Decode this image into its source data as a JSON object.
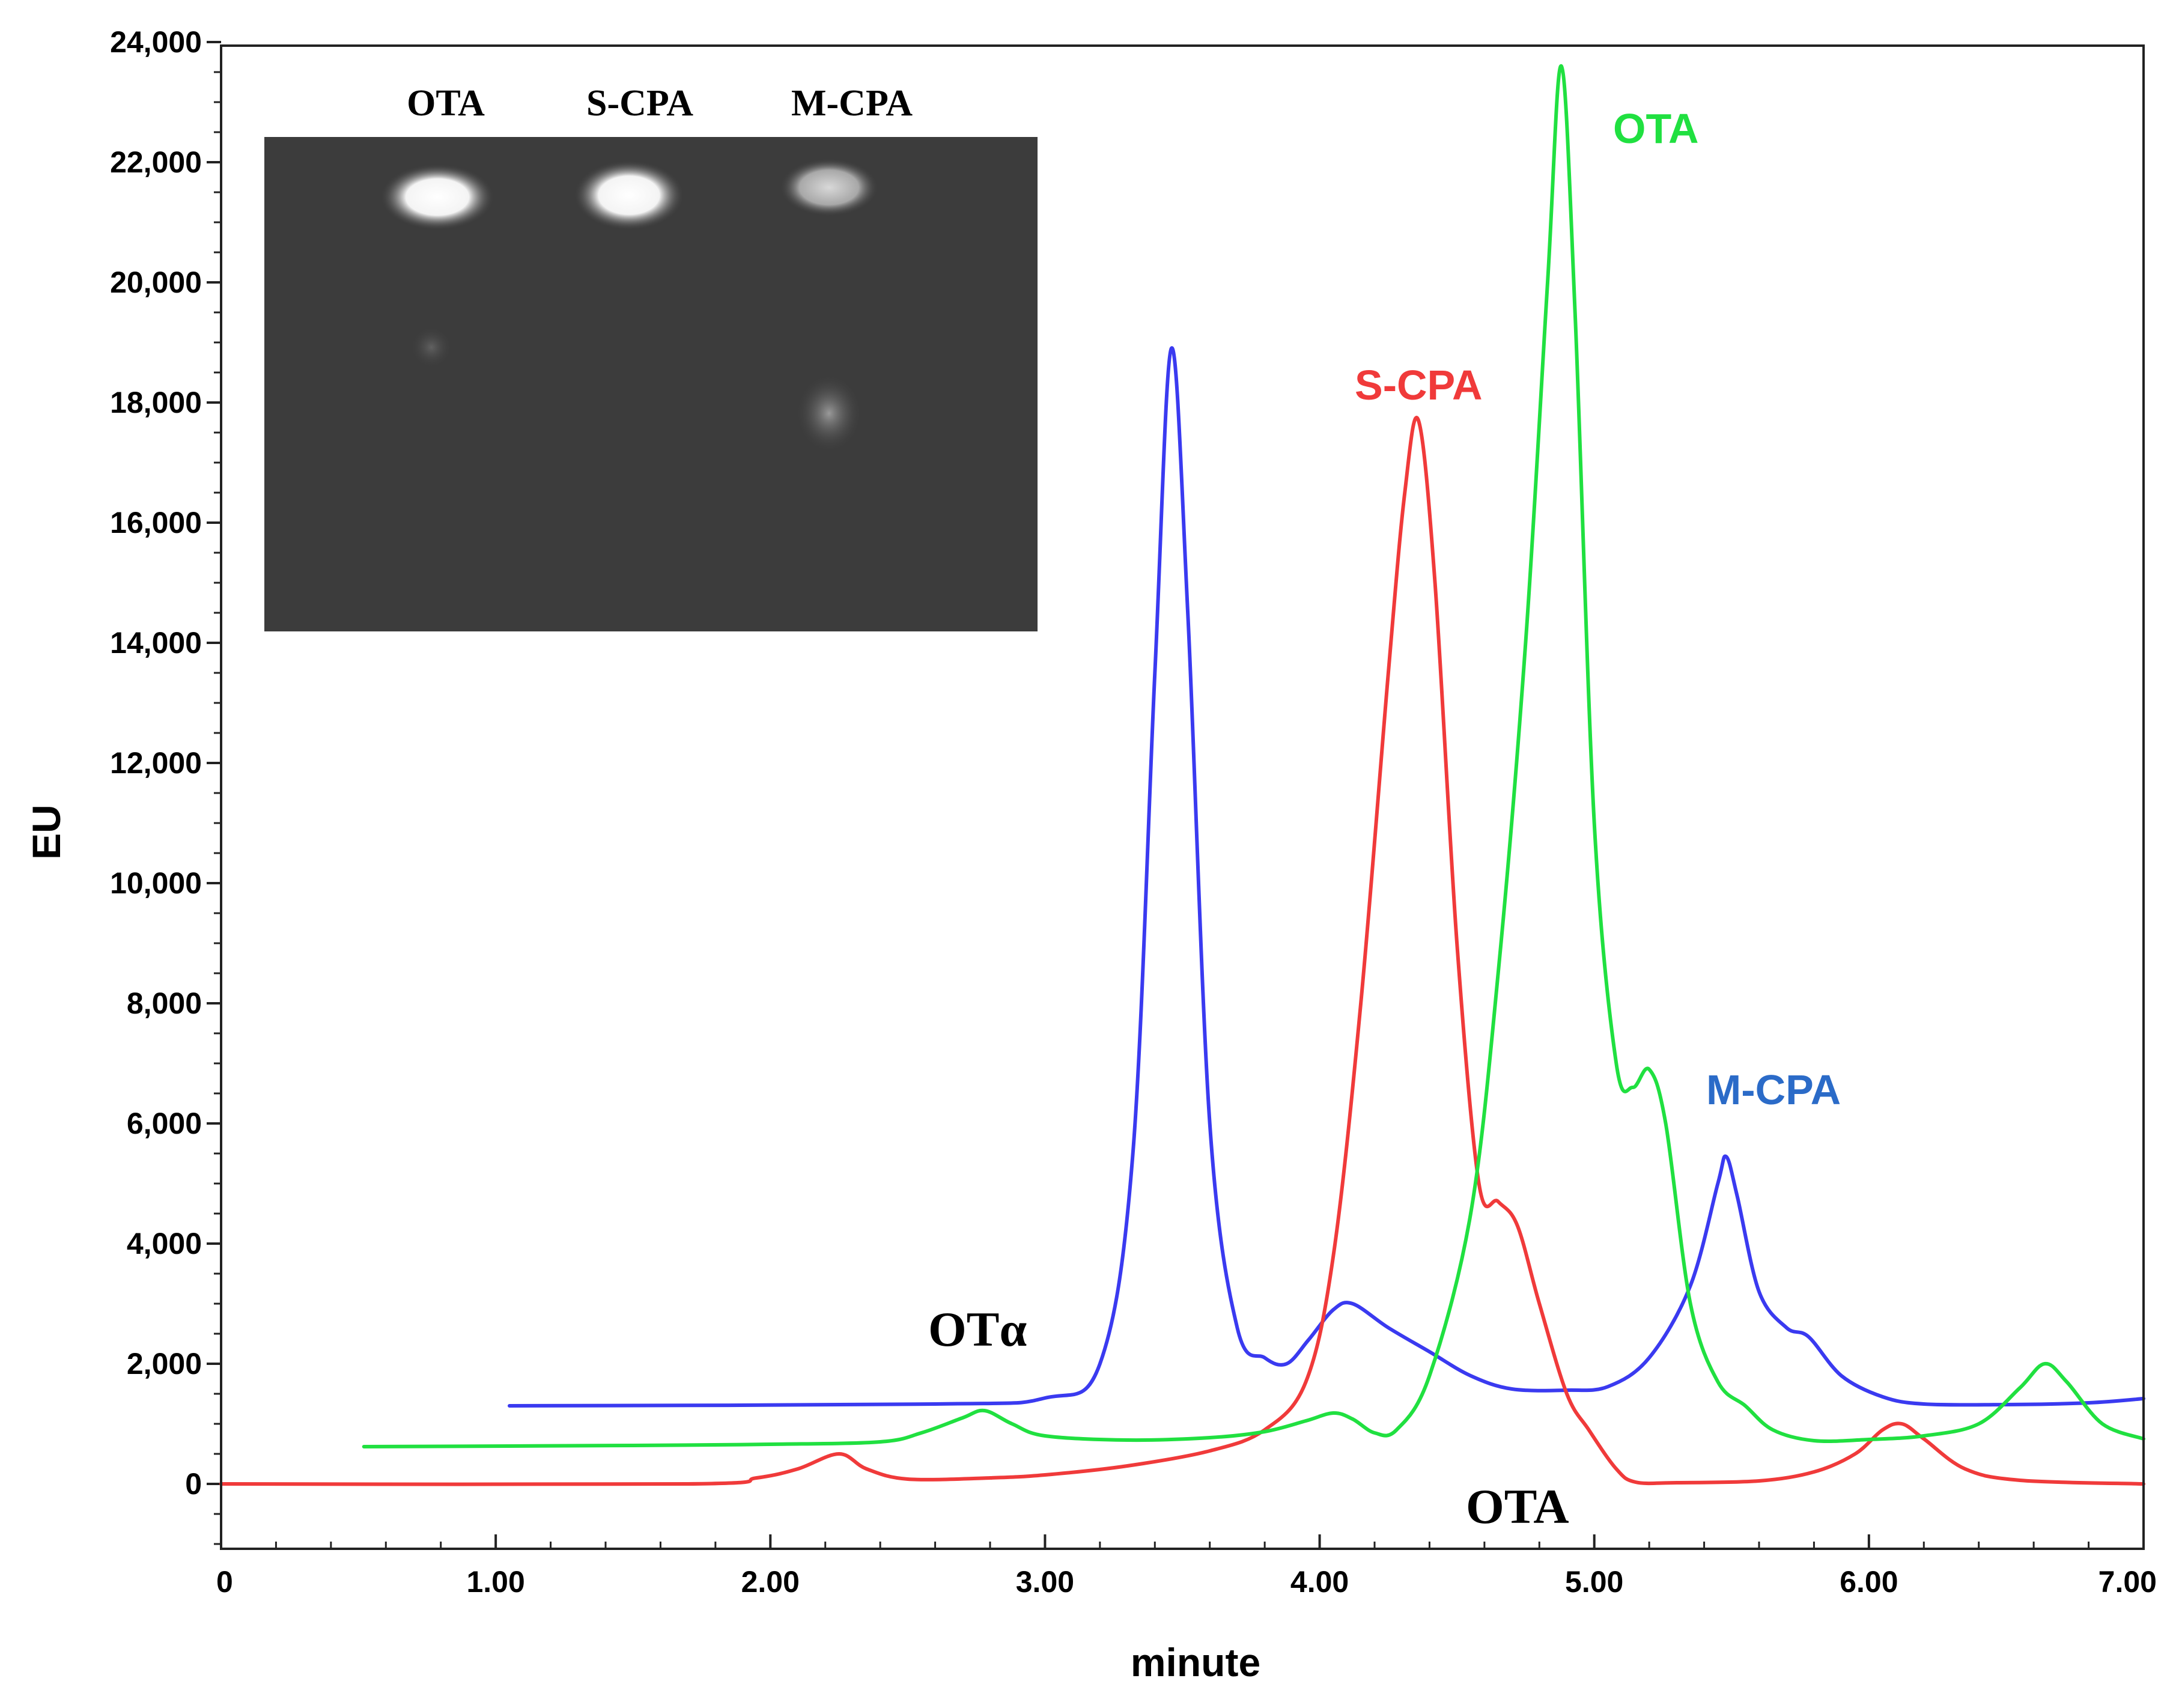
{
  "chart_data": {
    "type": "line",
    "xlabel": "minute",
    "ylabel": "EU",
    "xlim": [
      0,
      7.0
    ],
    "ylim": [
      -1100,
      24200
    ],
    "x_ticks": [
      "0",
      "1.00",
      "2.00",
      "3.00",
      "4.00",
      "5.00",
      "6.00",
      "7.00"
    ],
    "y_ticks": [
      "0",
      "2,000",
      "4,000",
      "6,000",
      "8,000",
      "10,000",
      "12,000",
      "14,000",
      "16,000",
      "18,000",
      "20,000",
      "22,000",
      "24,000"
    ],
    "grid": false,
    "series": [
      {
        "name": "M-CPA",
        "color": "#3a3af0",
        "points": [
          [
            1.05,
            1300
          ],
          [
            2.6,
            1330
          ],
          [
            3.0,
            1430
          ],
          [
            3.2,
            2000
          ],
          [
            3.32,
            5500
          ],
          [
            3.4,
            13500
          ],
          [
            3.46,
            18900
          ],
          [
            3.52,
            14500
          ],
          [
            3.6,
            6000
          ],
          [
            3.7,
            2600
          ],
          [
            3.8,
            2100
          ],
          [
            3.88,
            2000
          ],
          [
            3.96,
            2400
          ],
          [
            4.05,
            2900
          ],
          [
            4.12,
            3000
          ],
          [
            4.25,
            2600
          ],
          [
            4.4,
            2200
          ],
          [
            4.55,
            1800
          ],
          [
            4.7,
            1580
          ],
          [
            4.9,
            1560
          ],
          [
            5.05,
            1620
          ],
          [
            5.2,
            2100
          ],
          [
            5.35,
            3300
          ],
          [
            5.45,
            5000
          ],
          [
            5.48,
            5450
          ],
          [
            5.52,
            4800
          ],
          [
            5.6,
            3200
          ],
          [
            5.7,
            2600
          ],
          [
            5.78,
            2450
          ],
          [
            5.9,
            1800
          ],
          [
            6.05,
            1450
          ],
          [
            6.2,
            1330
          ],
          [
            6.5,
            1320
          ],
          [
            6.8,
            1350
          ],
          [
            7.0,
            1420
          ]
        ]
      },
      {
        "name": "S-CPA",
        "color": "#f03a3a",
        "points": [
          [
            0,
            0
          ],
          [
            1.7,
            0
          ],
          [
            1.95,
            100
          ],
          [
            2.1,
            250
          ],
          [
            2.25,
            500
          ],
          [
            2.35,
            250
          ],
          [
            2.5,
            80
          ],
          [
            2.8,
            100
          ],
          [
            3.0,
            150
          ],
          [
            3.3,
            300
          ],
          [
            3.6,
            550
          ],
          [
            3.8,
            900
          ],
          [
            3.95,
            1700
          ],
          [
            4.05,
            3800
          ],
          [
            4.15,
            8000
          ],
          [
            4.25,
            13500
          ],
          [
            4.31,
            16500
          ],
          [
            4.36,
            17700
          ],
          [
            4.42,
            15000
          ],
          [
            4.5,
            9000
          ],
          [
            4.58,
            5000
          ],
          [
            4.65,
            4700
          ],
          [
            4.72,
            4300
          ],
          [
            4.8,
            3000
          ],
          [
            4.9,
            1500
          ],
          [
            4.98,
            900
          ],
          [
            5.08,
            250
          ],
          [
            5.15,
            30
          ],
          [
            5.3,
            20
          ],
          [
            5.6,
            50
          ],
          [
            5.8,
            200
          ],
          [
            5.95,
            500
          ],
          [
            6.05,
            900
          ],
          [
            6.12,
            1000
          ],
          [
            6.2,
            750
          ],
          [
            6.35,
            250
          ],
          [
            6.55,
            60
          ],
          [
            7.0,
            0
          ]
        ]
      },
      {
        "name": "OTA",
        "color": "#20e040",
        "points": [
          [
            0.52,
            620
          ],
          [
            1.5,
            640
          ],
          [
            2.0,
            660
          ],
          [
            2.4,
            700
          ],
          [
            2.55,
            850
          ],
          [
            2.7,
            1100
          ],
          [
            2.78,
            1220
          ],
          [
            2.88,
            1000
          ],
          [
            3.0,
            800
          ],
          [
            3.3,
            730
          ],
          [
            3.6,
            770
          ],
          [
            3.8,
            870
          ],
          [
            3.95,
            1050
          ],
          [
            4.05,
            1180
          ],
          [
            4.12,
            1080
          ],
          [
            4.2,
            850
          ],
          [
            4.28,
            900
          ],
          [
            4.4,
            1800
          ],
          [
            4.55,
            4500
          ],
          [
            4.65,
            8500
          ],
          [
            4.75,
            14000
          ],
          [
            4.83,
            20000
          ],
          [
            4.88,
            23600
          ],
          [
            4.93,
            19500
          ],
          [
            5.0,
            11000
          ],
          [
            5.08,
            7000
          ],
          [
            5.14,
            6600
          ],
          [
            5.2,
            6900
          ],
          [
            5.26,
            6000
          ],
          [
            5.35,
            3000
          ],
          [
            5.45,
            1700
          ],
          [
            5.55,
            1300
          ],
          [
            5.65,
            900
          ],
          [
            5.8,
            720
          ],
          [
            6.0,
            740
          ],
          [
            6.2,
            800
          ],
          [
            6.4,
            1000
          ],
          [
            6.55,
            1600
          ],
          [
            6.64,
            2000
          ],
          [
            6.72,
            1700
          ],
          [
            6.85,
            1000
          ],
          [
            7.0,
            750
          ]
        ]
      }
    ],
    "annotations": [
      {
        "text": "OTA",
        "color": "#20e040"
      },
      {
        "text": "S-CPA",
        "color": "#f03a3a"
      },
      {
        "text": "M-CPA",
        "color": "#2b6bc8"
      },
      {
        "text": "OTα",
        "color": "#000000"
      },
      {
        "text": "OTA",
        "color": "#000000"
      }
    ],
    "inset_gel": {
      "lanes": [
        "OTA",
        "S-CPA",
        "M-CPA"
      ],
      "background": "#3c3c3c"
    }
  }
}
